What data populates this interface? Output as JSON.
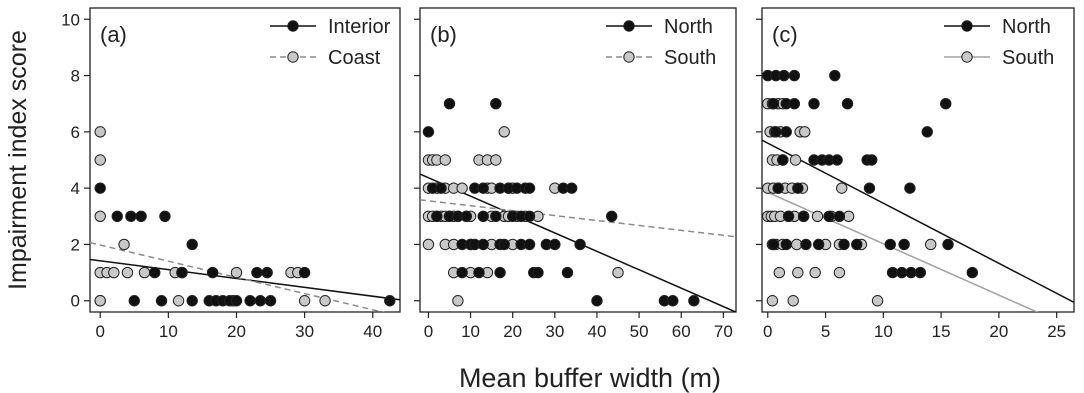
{
  "figure": {
    "ylabel": "Impairment index score",
    "xlabel": "Mean buffer width (m)"
  },
  "chart_data": [
    {
      "type": "scatter",
      "panel_label": "(a)",
      "xlim": [
        -1.5,
        44
      ],
      "ylim": [
        -0.4,
        10.4
      ],
      "xticks": [
        0,
        10,
        20,
        30,
        40
      ],
      "yticks": [
        0,
        2,
        4,
        6,
        8,
        10
      ],
      "legend_position": "top-right",
      "series": [
        {
          "name": "Interior",
          "marker_color": "#111111",
          "line_style": "solid",
          "fit": {
            "intercept": 1.42,
            "slope": -0.0315
          },
          "points": [
            [
              0,
              4
            ],
            [
              2.5,
              3
            ],
            [
              4.5,
              3
            ],
            [
              6,
              3
            ],
            [
              9.5,
              3
            ],
            [
              13.5,
              2
            ],
            [
              8,
              1
            ],
            [
              12,
              1
            ],
            [
              16.5,
              1
            ],
            [
              30,
              1
            ],
            [
              23,
              1
            ],
            [
              24.5,
              1
            ],
            [
              5,
              0
            ],
            [
              9,
              0
            ],
            [
              13.5,
              0
            ],
            [
              16,
              0
            ],
            [
              17,
              0
            ],
            [
              18,
              0
            ],
            [
              19,
              0
            ],
            [
              20,
              0
            ],
            [
              22,
              0
            ],
            [
              23.5,
              0
            ],
            [
              25,
              0
            ],
            [
              42.5,
              0
            ]
          ]
        },
        {
          "name": "Coast",
          "marker_color": "#c8c8c8",
          "line_style": "dashed",
          "fit": {
            "intercept": 1.98,
            "slope": -0.0575
          },
          "points": [
            [
              0,
              6
            ],
            [
              0,
              5
            ],
            [
              0,
              3
            ],
            [
              0,
              1
            ],
            [
              0,
              0
            ],
            [
              0,
              0
            ],
            [
              1,
              1
            ],
            [
              2,
              1
            ],
            [
              3.5,
              2
            ],
            [
              4,
              1
            ],
            [
              6.5,
              1
            ],
            [
              11,
              1
            ],
            [
              12,
              1
            ],
            [
              20,
              1
            ],
            [
              28,
              1
            ],
            [
              29,
              1
            ],
            [
              11.5,
              0
            ],
            [
              19.5,
              0
            ],
            [
              30,
              0
            ],
            [
              33,
              0
            ]
          ]
        }
      ]
    },
    {
      "type": "scatter",
      "panel_label": "(b)",
      "xlim": [
        -2,
        73
      ],
      "ylim": [
        -0.4,
        10.4
      ],
      "xticks": [
        0,
        10,
        20,
        30,
        40,
        50,
        60,
        70
      ],
      "yticks": [
        0,
        2,
        4,
        6,
        8,
        10
      ],
      "legend_position": "top-right",
      "series": [
        {
          "name": "North",
          "marker_color": "#111111",
          "line_style": "solid",
          "fit": {
            "intercept": 4.37,
            "slope": -0.0654
          },
          "points": [
            [
              0,
              6
            ],
            [
              5,
              7
            ],
            [
              16,
              7
            ],
            [
              1,
              4
            ],
            [
              3,
              4
            ],
            [
              11,
              4
            ],
            [
              13,
              4
            ],
            [
              17,
              4
            ],
            [
              19,
              4
            ],
            [
              21,
              4
            ],
            [
              23,
              4
            ],
            [
              24,
              4
            ],
            [
              32,
              4
            ],
            [
              34,
              4
            ],
            [
              2,
              3
            ],
            [
              5,
              3
            ],
            [
              7,
              3
            ],
            [
              9,
              3
            ],
            [
              13,
              3
            ],
            [
              16,
              3
            ],
            [
              20,
              3
            ],
            [
              22,
              3
            ],
            [
              24,
              3
            ],
            [
              43.5,
              3
            ],
            [
              8,
              2
            ],
            [
              10,
              2
            ],
            [
              11,
              2
            ],
            [
              13,
              2
            ],
            [
              17,
              2
            ],
            [
              18,
              2
            ],
            [
              22,
              2
            ],
            [
              24,
              2
            ],
            [
              28,
              2
            ],
            [
              30,
              2
            ],
            [
              36,
              2
            ],
            [
              8,
              1
            ],
            [
              12,
              1
            ],
            [
              17,
              1
            ],
            [
              25,
              1
            ],
            [
              26,
              1
            ],
            [
              33,
              1
            ],
            [
              40,
              0
            ],
            [
              56,
              0
            ],
            [
              58,
              0
            ],
            [
              63,
              0
            ]
          ]
        },
        {
          "name": "South",
          "marker_color": "#c8c8c8",
          "line_style": "dashed",
          "fit": {
            "intercept": 3.55,
            "slope": -0.0175
          },
          "points": [
            [
              0,
              5
            ],
            [
              1,
              5
            ],
            [
              2,
              5
            ],
            [
              4,
              5
            ],
            [
              12,
              5
            ],
            [
              14,
              5
            ],
            [
              16,
              5
            ],
            [
              18,
              6
            ],
            [
              0,
              4
            ],
            [
              2,
              4
            ],
            [
              4,
              4
            ],
            [
              6,
              4
            ],
            [
              8,
              4
            ],
            [
              14,
              4
            ],
            [
              15,
              4
            ],
            [
              19,
              4
            ],
            [
              20,
              4
            ],
            [
              30,
              4
            ],
            [
              0,
              3
            ],
            [
              1,
              3
            ],
            [
              2,
              3
            ],
            [
              3,
              3
            ],
            [
              4,
              3
            ],
            [
              5,
              3
            ],
            [
              6,
              3
            ],
            [
              7,
              3
            ],
            [
              9,
              3
            ],
            [
              10,
              3
            ],
            [
              15,
              3
            ],
            [
              18,
              3
            ],
            [
              19,
              3
            ],
            [
              21,
              3
            ],
            [
              23,
              3
            ],
            [
              26,
              3
            ],
            [
              0,
              2
            ],
            [
              4,
              2
            ],
            [
              6,
              2
            ],
            [
              10,
              2
            ],
            [
              15,
              2
            ],
            [
              20,
              2
            ],
            [
              6,
              1
            ],
            [
              10,
              1
            ],
            [
              14,
              1
            ],
            [
              45,
              1
            ],
            [
              7,
              0
            ]
          ]
        }
      ]
    },
    {
      "type": "scatter",
      "panel_label": "(c)",
      "xlim": [
        -0.5,
        26.5
      ],
      "ylim": [
        -0.4,
        10.4
      ],
      "xticks": [
        0,
        5,
        10,
        15,
        20,
        25
      ],
      "yticks": [
        0,
        2,
        4,
        6,
        8,
        10
      ],
      "legend_position": "top-right",
      "series": [
        {
          "name": "North",
          "marker_color": "#111111",
          "line_style": "solid",
          "fit": {
            "intercept": 5.6,
            "slope": -0.2135
          },
          "points": [
            [
              0,
              8
            ],
            [
              0.7,
              8
            ],
            [
              1.4,
              8
            ],
            [
              2.3,
              8
            ],
            [
              5.8,
              8
            ],
            [
              0.5,
              7
            ],
            [
              1.6,
              7
            ],
            [
              2.3,
              7
            ],
            [
              4,
              7
            ],
            [
              6.9,
              7
            ],
            [
              15.4,
              7
            ],
            [
              0.7,
              6
            ],
            [
              1.6,
              6
            ],
            [
              13.8,
              6
            ],
            [
              1.3,
              5
            ],
            [
              4,
              5
            ],
            [
              4.7,
              5
            ],
            [
              5.3,
              5
            ],
            [
              6,
              5
            ],
            [
              8.6,
              5
            ],
            [
              9,
              5
            ],
            [
              0.9,
              4
            ],
            [
              2.6,
              4
            ],
            [
              8.8,
              4
            ],
            [
              12.3,
              4
            ],
            [
              1.8,
              3
            ],
            [
              3.1,
              3
            ],
            [
              5.3,
              3
            ],
            [
              6.2,
              3
            ],
            [
              0.5,
              2
            ],
            [
              1.6,
              2
            ],
            [
              3.3,
              2
            ],
            [
              4.4,
              2
            ],
            [
              6.6,
              2
            ],
            [
              7.7,
              2
            ],
            [
              10.6,
              2
            ],
            [
              11.8,
              2
            ],
            [
              15.6,
              2
            ],
            [
              10.8,
              1
            ],
            [
              11.6,
              1
            ],
            [
              12.4,
              1
            ],
            [
              13.2,
              1
            ],
            [
              17.7,
              1
            ]
          ]
        },
        {
          "name": "South",
          "marker_color": "#c8c8c8",
          "line_style": "solid_gray",
          "fit": {
            "intercept": 3.85,
            "slope": -0.1825
          },
          "points": [
            [
              0,
              7
            ],
            [
              0.4,
              7
            ],
            [
              0.9,
              7
            ],
            [
              1.3,
              7
            ],
            [
              0.2,
              6
            ],
            [
              0.6,
              6
            ],
            [
              1.1,
              6
            ],
            [
              2.8,
              6
            ],
            [
              3.2,
              6
            ],
            [
              0.4,
              5
            ],
            [
              0.8,
              5
            ],
            [
              1.3,
              5
            ],
            [
              2.4,
              5
            ],
            [
              0,
              4
            ],
            [
              0.5,
              4
            ],
            [
              0.9,
              4
            ],
            [
              1.5,
              4
            ],
            [
              2.1,
              4
            ],
            [
              3,
              4
            ],
            [
              6.4,
              4
            ],
            [
              0,
              3
            ],
            [
              0.3,
              3
            ],
            [
              0.6,
              3
            ],
            [
              1.1,
              3
            ],
            [
              1.8,
              3
            ],
            [
              2.3,
              3
            ],
            [
              3.1,
              3
            ],
            [
              4.3,
              3
            ],
            [
              5.5,
              3
            ],
            [
              7,
              3
            ],
            [
              0.4,
              2
            ],
            [
              0.7,
              2
            ],
            [
              1.3,
              2
            ],
            [
              2.5,
              2
            ],
            [
              5,
              2
            ],
            [
              6.2,
              2
            ],
            [
              8.1,
              2
            ],
            [
              14.1,
              2
            ],
            [
              1,
              1
            ],
            [
              2.6,
              1
            ],
            [
              4.1,
              1
            ],
            [
              6.2,
              1
            ],
            [
              0.4,
              0
            ],
            [
              2.2,
              0
            ],
            [
              9.5,
              0
            ]
          ]
        }
      ]
    }
  ]
}
